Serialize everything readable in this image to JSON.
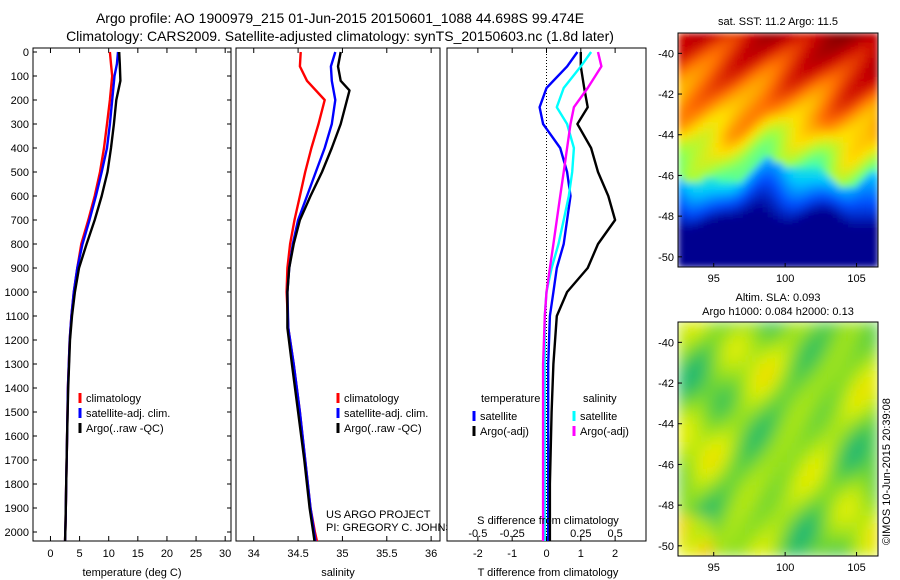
{
  "title_line1": "Argo profile: AO 1900979_215 01-Jun-2015 20150601_1088 44.698S 99.474E",
  "title_line2": "Climatology: CARS2009. Satellite-adjusted climatology: synTS_20150603.nc (1.8d later)",
  "map_sst_title": "sat. SST: 11.2 Argo: 11.5",
  "map_sla_title1": "Altim. SLA: 0.093",
  "map_sla_title2": "Argo h1000: 0.084 h2000: 0.13",
  "credit_line1": "US ARGO PROJECT",
  "credit_line2": "PI: GREGORY C. JOHNSON",
  "timestamp": "©IMOS 10-Jun-2015 20:39:08",
  "colors": {
    "climatology": "#ff0000",
    "satellite": "#0000ff",
    "argo": "#000000",
    "sal_satellite": "#00ffff",
    "sal_argo": "#ff00ff"
  },
  "chart_data": [
    {
      "type": "line",
      "xlabel": "temperature (deg C)",
      "xlim": [
        -3,
        31
      ],
      "xticks": [
        0,
        5,
        10,
        15,
        20,
        25,
        30
      ],
      "ylim": [
        2070,
        0
      ],
      "yticks": [
        0,
        100,
        200,
        300,
        400,
        500,
        600,
        700,
        800,
        900,
        1000,
        1100,
        1200,
        1300,
        1400,
        1500,
        1600,
        1700,
        1800,
        1900,
        2000
      ],
      "legend": [
        "climatology",
        "satellite-adj. clim.",
        "Argo(..raw -QC)"
      ],
      "series": [
        {
          "name": "climatology",
          "color": "#ff0000",
          "x": [
            10.2,
            10.4,
            10.6,
            10.2,
            9.7,
            9.2,
            8.5,
            7.6,
            6.5,
            5.3,
            4.6,
            4.0,
            3.6,
            3.3,
            3.0,
            2.85,
            2.7,
            2.6,
            2.5
          ],
          "y": [
            0,
            50,
            100,
            200,
            300,
            400,
            500,
            600,
            700,
            800,
            900,
            1000,
            1100,
            1200,
            1400,
            1600,
            1800,
            1950,
            2050
          ]
        },
        {
          "name": "satellite-adj. clim.",
          "color": "#0000ff",
          "x": [
            11.6,
            11.4,
            11.0,
            10.6,
            10.2,
            9.7,
            8.8,
            7.8,
            6.7,
            5.5,
            4.6,
            4.0,
            3.6,
            3.3,
            3.0,
            2.85,
            2.7,
            2.6,
            2.5
          ],
          "y": [
            0,
            50,
            100,
            200,
            300,
            400,
            500,
            600,
            700,
            800,
            900,
            1000,
            1100,
            1200,
            1400,
            1600,
            1800,
            1950,
            2050
          ]
        },
        {
          "name": "Argo(..raw -QC)",
          "color": "#000000",
          "x": [
            11.8,
            11.9,
            12.0,
            11.3,
            10.9,
            10.4,
            9.8,
            8.8,
            7.6,
            6.2,
            4.9,
            4.2,
            3.7,
            3.35,
            3.05,
            2.85,
            2.7,
            2.6,
            2.5
          ],
          "y": [
            0,
            50,
            120,
            200,
            300,
            400,
            500,
            600,
            700,
            800,
            900,
            1000,
            1100,
            1200,
            1400,
            1600,
            1800,
            1950,
            2050
          ]
        }
      ]
    },
    {
      "type": "line",
      "xlabel": "salinity",
      "xlim": [
        33.8,
        36.1
      ],
      "xticks": [
        34,
        34.5,
        35,
        35.5,
        36
      ],
      "ylim": [
        2070,
        0
      ],
      "legend": [
        "climatology",
        "satellite-adj. clim.",
        "Argo(..raw -QC)"
      ],
      "series": [
        {
          "name": "climatology",
          "color": "#ff0000",
          "x": [
            34.53,
            34.52,
            34.6,
            34.8,
            34.73,
            34.65,
            34.58,
            34.52,
            34.46,
            34.41,
            34.38,
            34.37,
            34.39,
            34.45,
            34.52,
            34.58,
            34.64,
            34.69,
            34.72
          ],
          "y": [
            0,
            60,
            120,
            200,
            300,
            400,
            500,
            600,
            700,
            800,
            900,
            1000,
            1150,
            1300,
            1500,
            1700,
            1900,
            2000,
            2050
          ]
        },
        {
          "name": "satellite-adj. clim.",
          "color": "#0000ff",
          "x": [
            34.92,
            34.87,
            34.88,
            34.92,
            34.88,
            34.8,
            34.7,
            34.6,
            34.5,
            34.44,
            34.4,
            34.38,
            34.39,
            34.45,
            34.52,
            34.58,
            34.64,
            34.68,
            34.7
          ],
          "y": [
            0,
            60,
            120,
            200,
            300,
            400,
            500,
            600,
            700,
            800,
            900,
            1000,
            1150,
            1300,
            1500,
            1700,
            1900,
            2000,
            2050
          ]
        },
        {
          "name": "Argo(..raw -QC)",
          "color": "#000000",
          "x": [
            34.98,
            34.95,
            34.98,
            35.08,
            34.98,
            34.88,
            34.77,
            34.64,
            34.52,
            34.45,
            34.4,
            34.38,
            34.38,
            34.43,
            34.5,
            34.57,
            34.63,
            34.67,
            34.69
          ],
          "y": [
            0,
            60,
            120,
            160,
            300,
            400,
            500,
            600,
            700,
            800,
            900,
            1000,
            1150,
            1300,
            1500,
            1700,
            1900,
            2000,
            2050
          ]
        }
      ]
    },
    {
      "type": "line",
      "xlabel": "T difference from climatology",
      "top_label": "S difference from climatology",
      "xlim": [
        -2.9,
        2.9
      ],
      "xticks": [
        -2,
        -1,
        0,
        1,
        2
      ],
      "top_tick_labels": [
        "-0.5",
        "-0.25",
        "0",
        "0.25",
        "0.5"
      ],
      "ylim": [
        2070,
        0
      ],
      "legend_headers": [
        "temperature",
        "salinity"
      ],
      "legend": [
        "satellite",
        "Argo(-adj)",
        "satellite",
        "Argo(-adj)"
      ],
      "series": [
        {
          "name": "satellite",
          "group": "temperature",
          "color": "#0000ff",
          "x": [
            0.9,
            0.6,
            0.0,
            -0.2,
            -0.1,
            0.4,
            0.6,
            0.7,
            0.6,
            0.5,
            0.3,
            0.2,
            0.1,
            0.05,
            0.05,
            0.05,
            0.05
          ],
          "y": [
            0,
            60,
            150,
            230,
            300,
            400,
            500,
            600,
            700,
            800,
            900,
            1000,
            1100,
            1300,
            1500,
            1800,
            2050
          ]
        },
        {
          "name": "Argo(-adj)",
          "group": "temperature",
          "color": "#000000",
          "x": [
            1.0,
            1.0,
            1.1,
            1.2,
            0.9,
            1.3,
            1.5,
            1.8,
            2.0,
            1.5,
            1.2,
            0.6,
            0.3,
            0.2,
            0.15,
            0.1,
            0.1
          ],
          "y": [
            0,
            60,
            150,
            230,
            300,
            400,
            500,
            600,
            700,
            800,
            900,
            1000,
            1100,
            1300,
            1500,
            1800,
            2050
          ]
        },
        {
          "name": "satellite",
          "group": "salinity",
          "color": "#00ffff",
          "x": [
            1.3,
            1.0,
            0.5,
            0.3,
            0.6,
            0.8,
            0.75,
            0.65,
            0.5,
            0.35,
            0.15,
            0.0,
            -0.05,
            -0.05,
            -0.05,
            -0.05,
            -0.05
          ],
          "y": [
            0,
            60,
            150,
            230,
            300,
            400,
            500,
            600,
            700,
            800,
            900,
            1000,
            1100,
            1300,
            1500,
            1800,
            2050
          ]
        },
        {
          "name": "Argo(-adj)",
          "group": "salinity",
          "color": "#ff00ff",
          "x": [
            1.5,
            1.6,
            1.2,
            0.8,
            0.7,
            0.6,
            0.5,
            0.4,
            0.3,
            0.2,
            0.1,
            0.0,
            -0.05,
            -0.1,
            -0.1,
            -0.1,
            -0.1
          ],
          "y": [
            0,
            60,
            150,
            230,
            300,
            400,
            500,
            600,
            700,
            800,
            900,
            1000,
            1100,
            1300,
            1500,
            1800,
            2050
          ]
        }
      ]
    },
    {
      "type": "heatmap",
      "title": "sat. SST: 11.2 Argo: 11.5",
      "xlim": [
        92.5,
        106.5
      ],
      "ylim": [
        -50.5,
        -39
      ],
      "xticks": [
        95,
        100,
        105
      ],
      "yticks": [
        -40,
        -42,
        -44,
        -46,
        -48,
        -50
      ],
      "colormap": [
        "#00008f",
        "#0050ff",
        "#00c8ff",
        "#40ffb0",
        "#a0ff40",
        "#ffe000",
        "#ff7000",
        "#c80000",
        "#800000"
      ]
    },
    {
      "type": "heatmap",
      "title": "Altim. SLA: 0.093 / Argo h1000: 0.084 h2000: 0.13",
      "xlim": [
        92.5,
        106.5
      ],
      "ylim": [
        -50.5,
        -39
      ],
      "xticks": [
        95,
        100,
        105
      ],
      "yticks": [
        -40,
        -42,
        -44,
        -46,
        -48,
        -50
      ],
      "colormap": [
        "#00a8a0",
        "#30c060",
        "#90e020",
        "#e8f000",
        "#ff9000"
      ]
    }
  ]
}
